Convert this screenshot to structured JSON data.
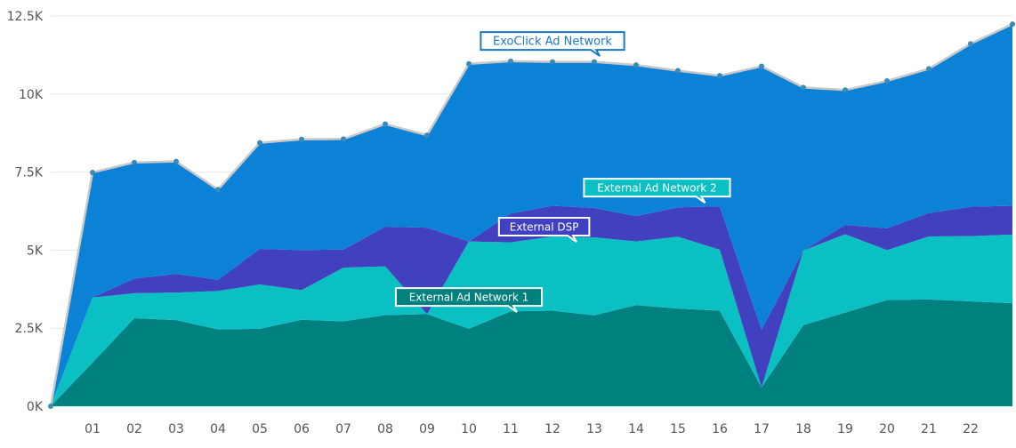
{
  "chart_data": {
    "type": "area",
    "stacked": true,
    "x": [
      "",
      "01",
      "02",
      "03",
      "04",
      "05",
      "06",
      "07",
      "08",
      "09",
      "10",
      "11",
      "12",
      "13",
      "14",
      "15",
      "16",
      "17",
      "18",
      "19",
      "20",
      "21",
      "22",
      ""
    ],
    "ylim": [
      0,
      12500
    ],
    "yticks": [
      {
        "value": 0,
        "label": "0K"
      },
      {
        "value": 2500,
        "label": "2.5K"
      },
      {
        "value": 5000,
        "label": "5K"
      },
      {
        "value": 7500,
        "label": "7.5K"
      },
      {
        "value": 10000,
        "label": "10K"
      },
      {
        "value": 12500,
        "label": "12.5K"
      }
    ],
    "grid": true,
    "series": [
      {
        "name": "External Ad Network 1",
        "color": "#00807e",
        "values": [
          0,
          1400,
          2820,
          2760,
          2460,
          2480,
          2770,
          2720,
          2920,
          2950,
          2480,
          3040,
          3060,
          2910,
          3240,
          3130,
          3060,
          600,
          2600,
          3000,
          3400,
          3420,
          3360,
          3300
        ]
      },
      {
        "name": "External Ad Network 2",
        "color": "#0bc0c2",
        "values": [
          0,
          2080,
          800,
          880,
          1230,
          1420,
          950,
          1720,
          1560,
          0,
          2800,
          2210,
          2380,
          2500,
          2040,
          2300,
          1950,
          0,
          2390,
          2510,
          1600,
          2020,
          2090,
          2200
        ]
      },
      {
        "name": "External DSP",
        "color": "#4140bf",
        "values": [
          0,
          0,
          470,
          600,
          360,
          1140,
          1280,
          580,
          1270,
          2770,
          0,
          920,
          980,
          940,
          810,
          940,
          1390,
          1850,
          0,
          300,
          700,
          750,
          940,
          920
        ]
      },
      {
        "name": "ExoClick Ad Network",
        "color": "#0b82d6",
        "values": [
          0,
          4010,
          3720,
          3600,
          2890,
          3400,
          3550,
          3540,
          3290,
          2960,
          5690,
          4880,
          4610,
          4680,
          4840,
          4380,
          4190,
          8440,
          5220,
          4320,
          4720,
          4620,
          5220,
          5820
        ]
      }
    ],
    "total_line": {
      "color": "#c8c8c8",
      "marker_color": "#3a8bb8"
    },
    "annotations": [
      {
        "text": "ExoClick Ad Network",
        "style": "outline",
        "x_index": 12,
        "y": 11700
      },
      {
        "text": "External Ad Network 2",
        "style": "filled",
        "x_index": 14.5,
        "y": 7000
      },
      {
        "text": "External DSP",
        "style": "filled",
        "x_index": 11.8,
        "y": 5750
      },
      {
        "text": "External Ad Network 1",
        "style": "filled",
        "x_index": 10,
        "y": 3500
      }
    ]
  }
}
